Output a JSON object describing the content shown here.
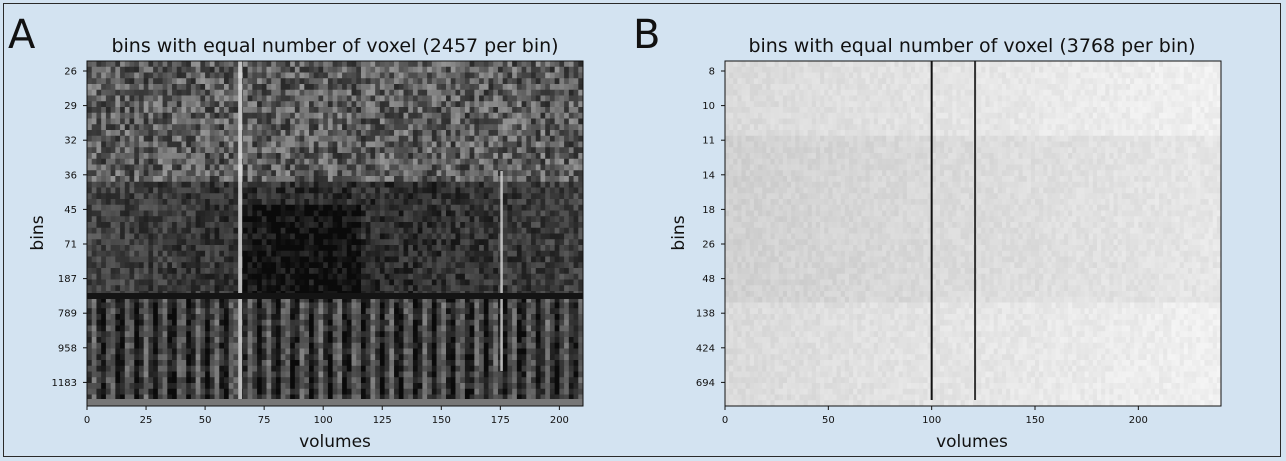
{
  "chart_data": [
    {
      "type": "heatmap",
      "panel_label": "A",
      "title": "bins with equal number of voxel (2457 per bin)",
      "xlabel": "volumes",
      "ylabel": "bins",
      "xlim": [
        0,
        210
      ],
      "x_ticks": [
        0,
        25,
        50,
        75,
        100,
        125,
        150,
        175,
        200
      ],
      "y_tick_labels": [
        "26",
        "29",
        "32",
        "36",
        "45",
        "71",
        "187",
        "789",
        "958",
        "1183"
      ],
      "colormap": "gray",
      "notes": [
        "bright vertical stripe near volume 65",
        "bright vertical stripe near volume 175",
        "horizontal boundary between bins 187 and 789"
      ]
    },
    {
      "type": "heatmap",
      "panel_label": "B",
      "title": "bins with equal number of voxel (3768 per bin)",
      "xlabel": "volumes",
      "ylabel": "bins",
      "xlim": [
        0,
        240
      ],
      "x_ticks": [
        0,
        50,
        100,
        150,
        200
      ],
      "y_tick_labels": [
        "8",
        "10",
        "11",
        "14",
        "18",
        "26",
        "48",
        "138",
        "424",
        "694"
      ],
      "colormap": "gray",
      "notes": [
        "dark vertical line at volume 100",
        "dark vertical line at volume 121"
      ]
    }
  ]
}
